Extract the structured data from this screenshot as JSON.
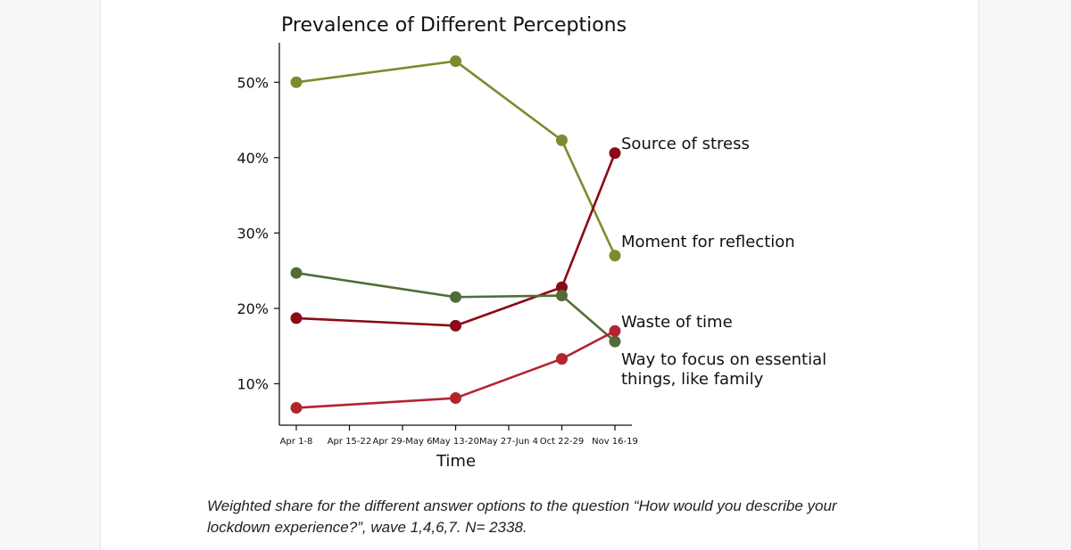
{
  "caption": "Weighted share for the different answer options to the question “How would you describe your lockdown experience?”, wave 1,4,6,7. N= 2338.",
  "chart_data": {
    "type": "line",
    "title": "Prevalence of Different Perceptions",
    "xlabel": "Time",
    "ylabel": "",
    "x_ticks": [
      "Apr 1-8",
      "Apr 15-22",
      "Apr 29-May 6",
      "May 13-20",
      "May 27-Jun 4",
      "Oct 22-29",
      "Nov 16-19"
    ],
    "yticks": [
      10,
      20,
      30,
      40,
      50
    ],
    "ytick_labels": [
      "10%",
      "20%",
      "30%",
      "40%",
      "50%"
    ],
    "ylim": [
      4.5,
      55
    ],
    "grid": false,
    "legend": "none",
    "series": [
      {
        "name": "Moment for reflection",
        "color": "#7f8a2e",
        "points": [
          {
            "x": "Apr 1-8",
            "y": 50.0
          },
          {
            "x": "May 13-20",
            "y": 52.8
          },
          {
            "x": "Oct 22-29",
            "y": 42.3
          },
          {
            "x": "Nov 16-19",
            "y": 27.0
          }
        ]
      },
      {
        "name": "Source of stress",
        "color": "#8b0a15",
        "points": [
          {
            "x": "Apr 1-8",
            "y": 18.7
          },
          {
            "x": "May 13-20",
            "y": 17.7
          },
          {
            "x": "Oct 22-29",
            "y": 22.8
          },
          {
            "x": "Nov 16-19",
            "y": 40.6
          }
        ]
      },
      {
        "name": "Way to focus on essential things, like family",
        "color": "#4f6e37",
        "points": [
          {
            "x": "Apr 1-8",
            "y": 24.7
          },
          {
            "x": "May 13-20",
            "y": 21.5
          },
          {
            "x": "Oct 22-29",
            "y": 21.7
          },
          {
            "x": "Nov 16-19",
            "y": 15.6
          }
        ]
      },
      {
        "name": "Waste of time",
        "color": "#b3242f",
        "points": [
          {
            "x": "Apr 1-8",
            "y": 6.8
          },
          {
            "x": "May 13-20",
            "y": 8.1
          },
          {
            "x": "Oct 22-29",
            "y": 13.3
          },
          {
            "x": "Nov 16-19",
            "y": 17.0
          }
        ]
      }
    ],
    "annotations": [
      {
        "series": 1,
        "lines": [
          "Source of stress"
        ]
      },
      {
        "series": 0,
        "lines": [
          "Moment for reflection"
        ]
      },
      {
        "series": 3,
        "lines": [
          "Waste of time"
        ]
      },
      {
        "series": 2,
        "lines": [
          "Way to focus on essential",
          "things, like family"
        ]
      }
    ]
  }
}
